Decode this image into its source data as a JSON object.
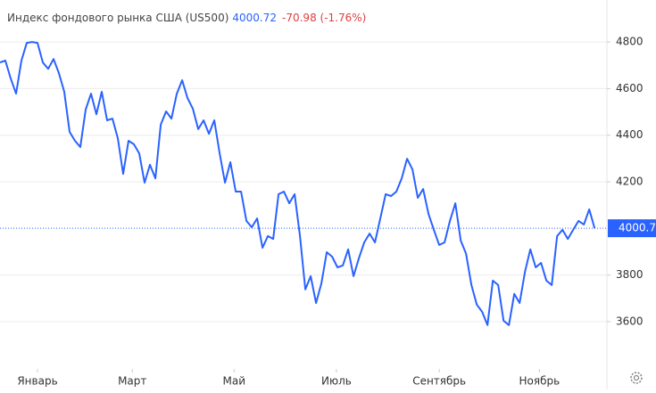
{
  "chart_data": {
    "type": "line",
    "title": "Индекс фондового рынка США (US500)",
    "price": 4000.72,
    "change": "-70.98 (-1.76%)",
    "series": [
      {
        "name": "US500",
        "color": "#2962ff",
        "values": [
          4712,
          4720,
          4643,
          4578,
          4720,
          4796,
          4800,
          4796,
          4712,
          4685,
          4727,
          4666,
          4586,
          4414,
          4376,
          4349,
          4510,
          4578,
          4490,
          4586,
          4464,
          4471,
          4387,
          4234,
          4376,
          4361,
          4322,
          4196,
          4273,
          4215,
          4445,
          4502,
          4471,
          4578,
          4636,
          4559,
          4513,
          4426,
          4464,
          4406,
          4464,
          4322,
          4196,
          4284,
          4158,
          4158,
          4032,
          4005,
          4043,
          3917,
          3967,
          3955,
          4147,
          4158,
          4108,
          4147,
          3967,
          3738,
          3795,
          3680,
          3764,
          3898,
          3879,
          3833,
          3841,
          3910,
          3795,
          3872,
          3940,
          3978,
          3940,
          4043,
          4147,
          4139,
          4158,
          4215,
          4299,
          4253,
          4131,
          4169,
          4062,
          3994,
          3929,
          3940,
          4032,
          4108,
          3948,
          3891,
          3757,
          3673,
          3642,
          3585,
          3776,
          3757,
          3604,
          3585,
          3719,
          3680,
          3814,
          3910,
          3833,
          3852,
          3776,
          3757,
          3967,
          3994,
          3955,
          3994,
          4032,
          4017,
          4082,
          4000.72
        ]
      }
    ],
    "last_price": {
      "value": 4000.72,
      "label": "4000.7"
    },
    "xlim": [
      0,
      113.3
    ],
    "xticks": [
      {
        "value": 7,
        "label": "Январь"
      },
      {
        "value": 24.7,
        "label": "Март"
      },
      {
        "value": 43.7,
        "label": "Май"
      },
      {
        "value": 62.8,
        "label": "Июль"
      },
      {
        "value": 82,
        "label": "Сентябрь"
      },
      {
        "value": 100.7,
        "label": "Ноябрь"
      }
    ],
    "ylim": [
      3420,
      4980
    ],
    "yticks": [
      3600,
      3800,
      4200,
      4400,
      4600,
      4800
    ],
    "grid": true
  }
}
